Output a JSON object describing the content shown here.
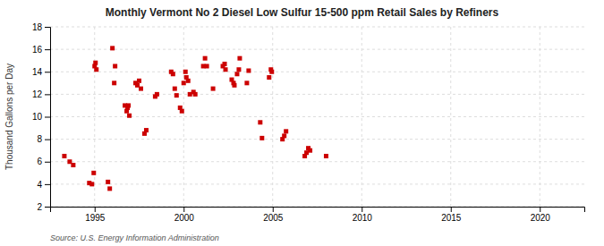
{
  "chart_data": {
    "type": "scatter",
    "title": "Monthly Vermont No 2 Diesel Low Sulfur 15-500 ppm Retail Sales by Refiners",
    "ylabel": "Thousand Gallons per Day",
    "annotation": "Source: U.S. Energy Information Administration",
    "color": "#cc0000",
    "marker": "square",
    "grid": true,
    "xlim": [
      1992.5,
      2022.5
    ],
    "ylim": [
      2,
      18
    ],
    "xticks": [
      1995,
      2000,
      2005,
      2010,
      2015,
      2020
    ],
    "yticks": [
      2,
      4,
      6,
      8,
      10,
      12,
      14,
      16,
      18
    ],
    "x": [
      1993.3,
      1993.6,
      1993.8,
      1994.7,
      1994.85,
      1994.95,
      1995.0,
      1995.05,
      1995.1,
      1995.75,
      1995.85,
      1996.0,
      1996.1,
      1996.15,
      1996.7,
      1996.8,
      1996.85,
      1996.9,
      1996.95,
      1997.3,
      1997.4,
      1997.5,
      1997.6,
      1997.8,
      1997.9,
      1998.4,
      1998.5,
      1999.3,
      1999.4,
      1999.5,
      1999.6,
      1999.8,
      1999.9,
      2000.0,
      2000.1,
      2000.15,
      2000.25,
      2000.35,
      2000.55,
      2000.65,
      2001.1,
      2001.2,
      2001.3,
      2001.65,
      2002.2,
      2002.3,
      2002.35,
      2002.7,
      2002.8,
      2002.85,
      2003.0,
      2003.1,
      2003.15,
      2003.55,
      2003.65,
      2004.3,
      2004.4,
      2004.8,
      2004.9,
      2004.95,
      2005.55,
      2005.65,
      2005.75,
      2006.8,
      2006.9,
      2007.0,
      2007.1,
      2008.0
    ],
    "values": [
      6.5,
      6.0,
      5.7,
      4.1,
      4.0,
      5.0,
      14.5,
      14.8,
      14.2,
      4.2,
      3.6,
      16.1,
      13.0,
      14.5,
      11.0,
      10.5,
      10.8,
      11.0,
      10.1,
      13.0,
      12.8,
      13.2,
      12.5,
      8.5,
      8.8,
      11.8,
      12.0,
      14.0,
      13.8,
      12.5,
      11.9,
      10.8,
      10.5,
      13.0,
      14.0,
      13.5,
      13.2,
      12.0,
      12.2,
      12.0,
      14.5,
      15.2,
      14.5,
      12.5,
      14.5,
      14.7,
      14.2,
      13.3,
      13.0,
      12.8,
      13.8,
      14.2,
      15.2,
      13.0,
      14.1,
      9.5,
      8.1,
      13.5,
      14.2,
      14.0,
      8.0,
      8.3,
      8.7,
      6.5,
      6.8,
      7.2,
      7.0,
      6.5
    ]
  }
}
